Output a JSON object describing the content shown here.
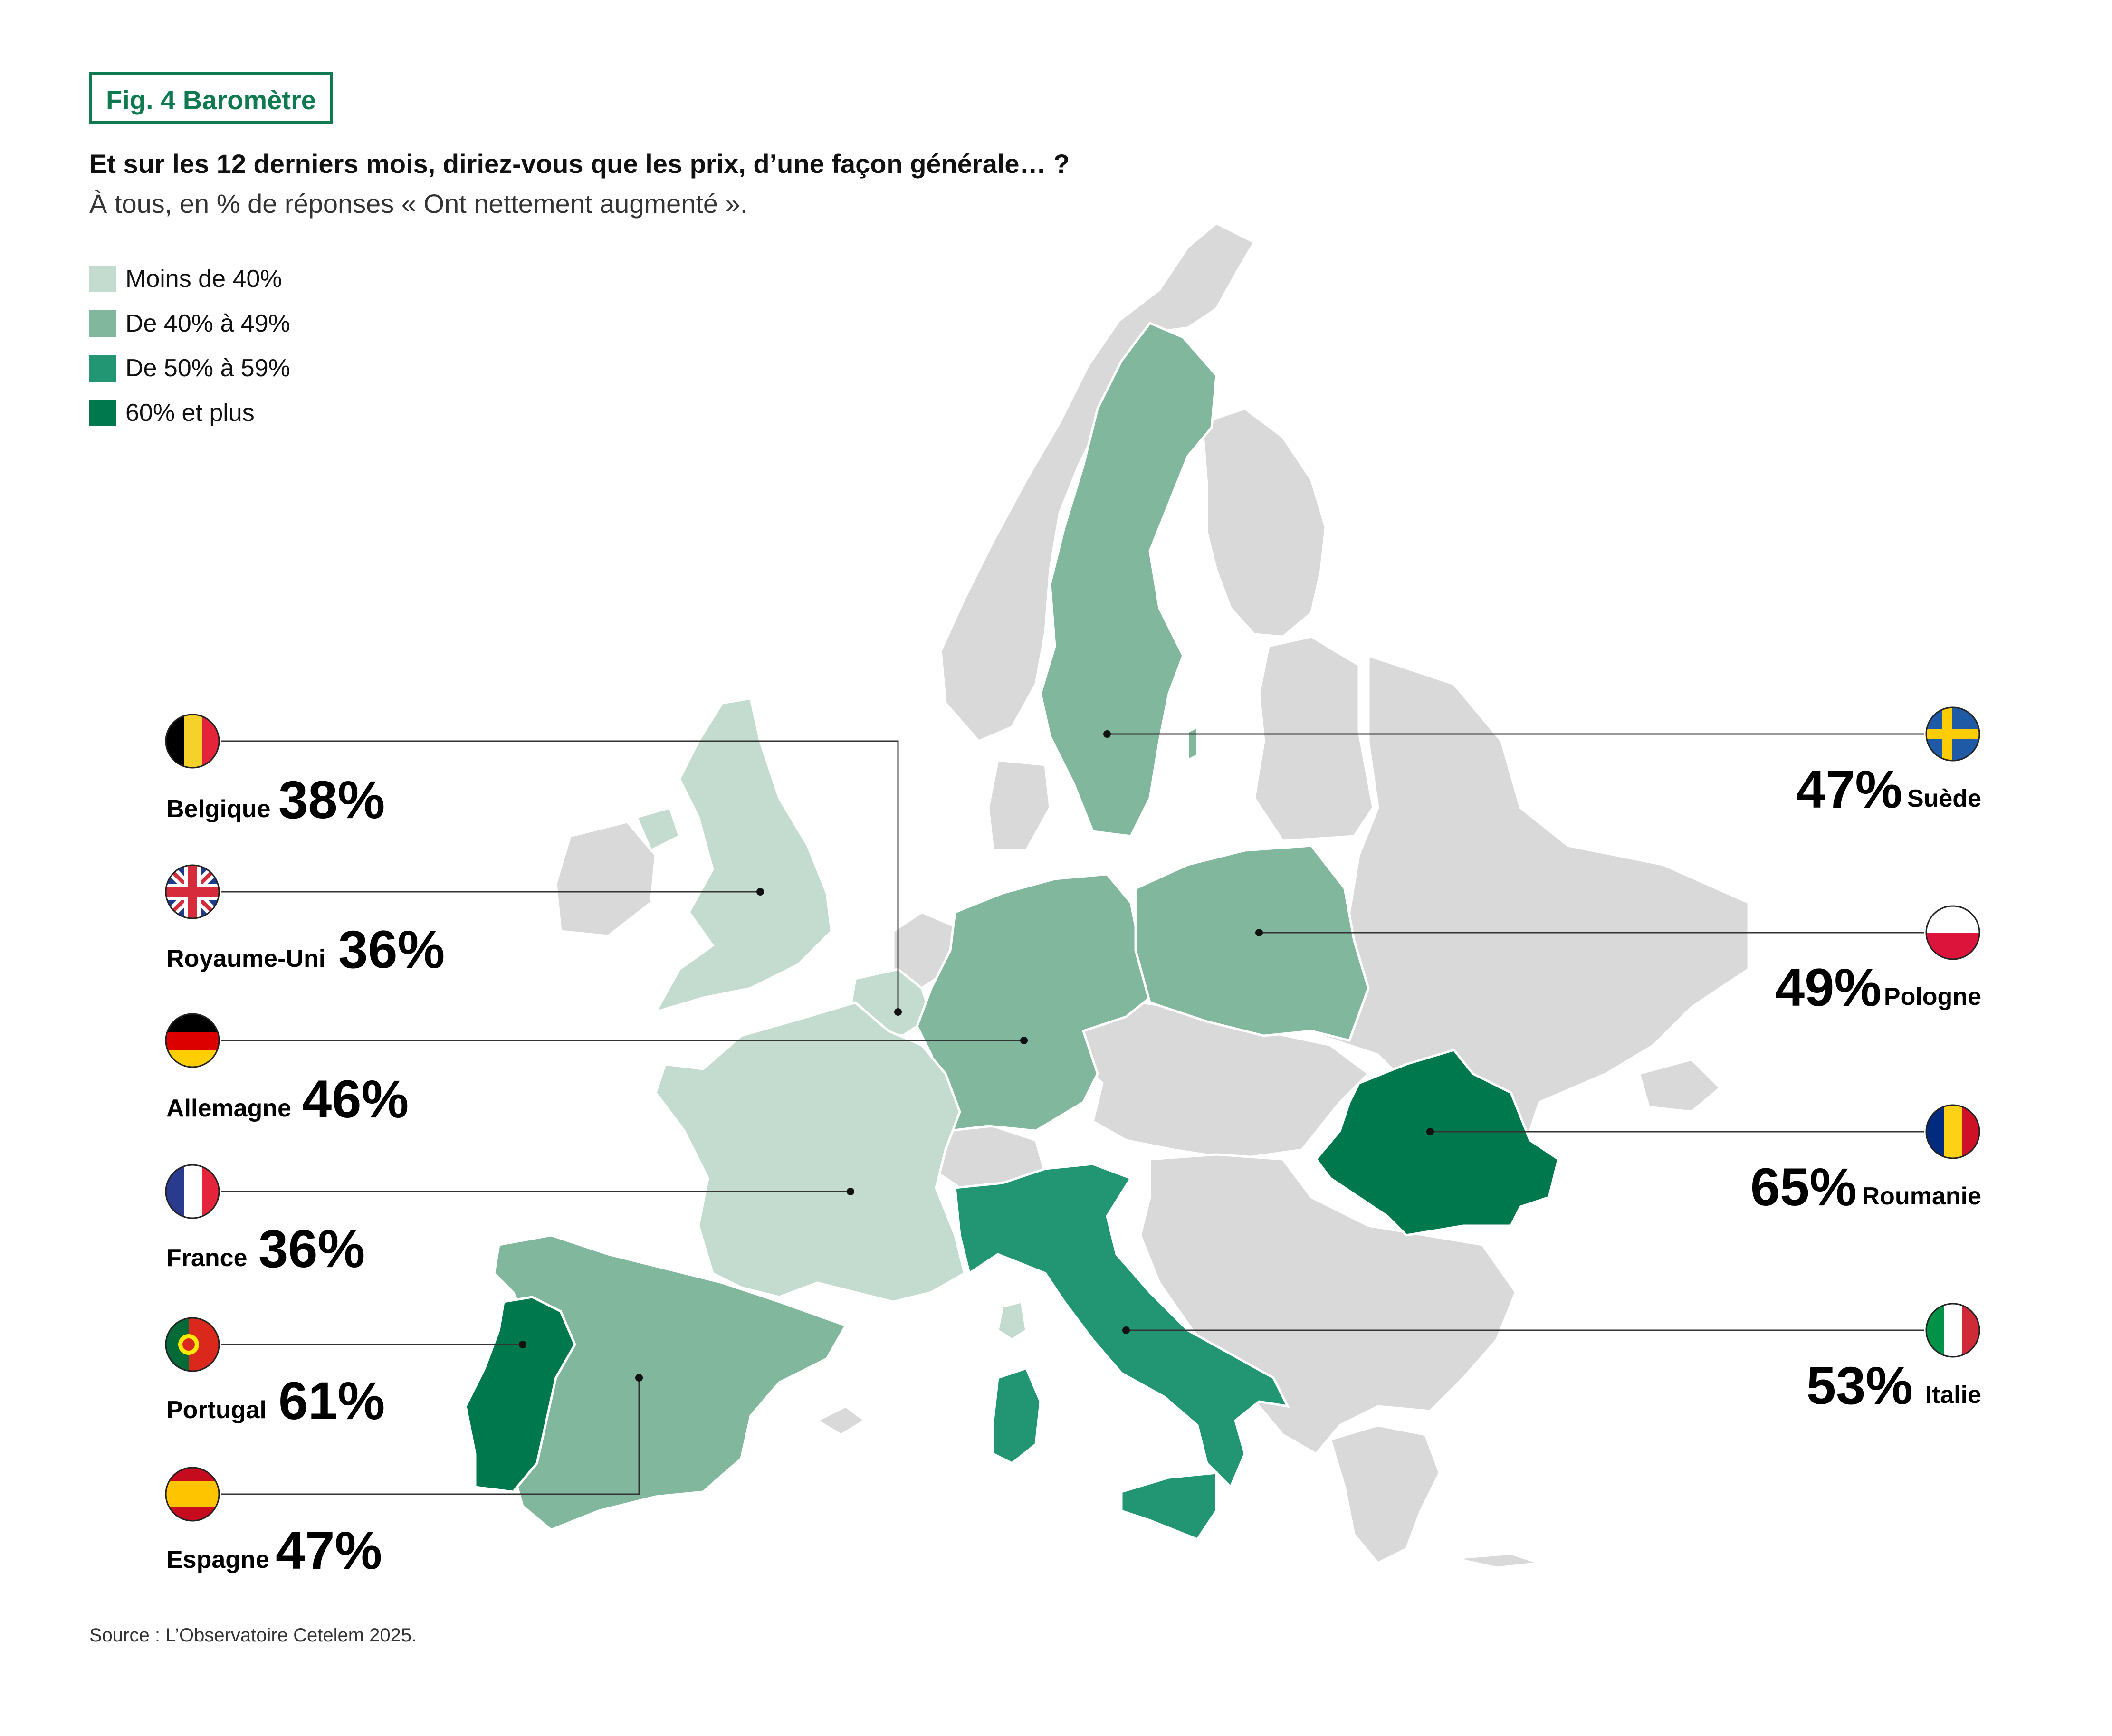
{
  "header": {
    "tag": "Fig. 4 Baromètre",
    "question": "Et sur les 12 derniers mois, diriez-vous que les prix, d’une façon générale… ?",
    "subtitle": "À tous, en % de réponses « Ont nettement augmenté »."
  },
  "legend": [
    {
      "label": "Moins de 40%",
      "color": "#c3dccf"
    },
    {
      "label": "De 40% à 49%",
      "color": "#80b79d"
    },
    {
      "label": "De 50% à 59%",
      "color": "#229672"
    },
    {
      "label": "60% et plus",
      "color": "#00784e"
    }
  ],
  "colors": {
    "other_country": "#d9d9d9",
    "leader_line": "#333333"
  },
  "countries": {
    "belgique": {
      "name": "Belgique",
      "value": "38%"
    },
    "royaume_uni": {
      "name": "Royaume-Uni",
      "value": "36%"
    },
    "allemagne": {
      "name": "Allemagne",
      "value": "46%"
    },
    "france": {
      "name": "France",
      "value": "36%"
    },
    "portugal": {
      "name": "Portugal",
      "value": "61%"
    },
    "espagne": {
      "name": "Espagne",
      "value": "47%"
    },
    "suede": {
      "name": "Suède",
      "value": "47%"
    },
    "pologne": {
      "name": "Pologne",
      "value": "49%"
    },
    "roumanie": {
      "name": "Roumanie",
      "value": "65%"
    },
    "italie": {
      "name": "Italie",
      "value": "53%"
    }
  },
  "source": "Source : L’Observatoire Cetelem 2025."
}
